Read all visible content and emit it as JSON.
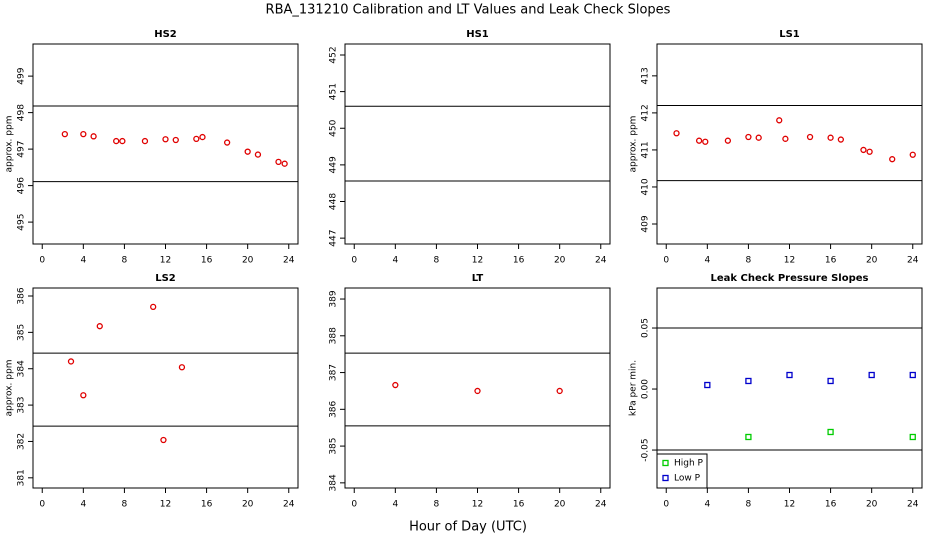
{
  "title": "RBA_131210  Calibration and LT Values and Leak Check Slopes",
  "xlabel": "Hour of Day (UTC)",
  "chart_data": [
    {
      "type": "scatter",
      "title": "HS2",
      "ylabel": "approx. ppm",
      "marker": "circle",
      "color": "#e00000",
      "x": [
        2.2,
        4,
        5,
        7.2,
        7.8,
        10,
        12,
        13,
        15,
        15.6,
        18,
        20,
        21,
        23,
        23.6
      ],
      "values": [
        497.41,
        497.41,
        497.35,
        497.22,
        497.22,
        497.22,
        497.27,
        497.25,
        497.28,
        497.33,
        497.18,
        496.93,
        496.85,
        496.65,
        496.6
      ],
      "hlines": [
        498.18,
        496.11
      ],
      "xlim": [
        -0.9,
        24.9
      ],
      "xticks": [
        0,
        4,
        8,
        12,
        16,
        20,
        24
      ],
      "ylim": [
        494.4,
        499.88
      ],
      "yticks": [
        495,
        496,
        497,
        498,
        499
      ]
    },
    {
      "type": "scatter",
      "title": "HS1",
      "marker": "circle",
      "color": "#e00000",
      "x": [],
      "values": [],
      "hlines": [
        450.6,
        448.56
      ],
      "xlim": [
        -0.9,
        24.9
      ],
      "xticks": [
        0,
        4,
        8,
        12,
        16,
        20,
        24
      ],
      "ylim": [
        446.84,
        452.3
      ],
      "yticks": [
        447,
        448,
        449,
        450,
        451,
        452
      ]
    },
    {
      "type": "scatter",
      "title": "LS1",
      "ylabel": "approx. ppm",
      "marker": "circle",
      "color": "#e00000",
      "x": [
        1,
        3.2,
        3.8,
        6,
        8,
        9,
        11,
        11.6,
        14,
        16,
        17,
        19.2,
        19.8,
        22,
        24
      ],
      "values": [
        411.45,
        411.25,
        411.22,
        411.25,
        411.35,
        411.33,
        411.8,
        411.3,
        411.35,
        411.33,
        411.28,
        411.0,
        410.95,
        410.75,
        410.87
      ],
      "hlines": [
        412.2,
        410.17
      ],
      "xlim": [
        -0.9,
        24.9
      ],
      "xticks": [
        0,
        4,
        8,
        12,
        16,
        20,
        24
      ],
      "ylim": [
        408.46,
        413.86
      ],
      "yticks": [
        409,
        410,
        411,
        412,
        413
      ]
    },
    {
      "type": "scatter",
      "title": "LS2",
      "ylabel": "approx. ppm",
      "marker": "circle",
      "color": "#e00000",
      "x": [
        2.8,
        4,
        5.6,
        10.8,
        11.8,
        13.6
      ],
      "values": [
        384.2,
        383.27,
        385.17,
        385.7,
        382.04,
        384.04
      ],
      "hlines": [
        384.43,
        382.42
      ],
      "xlim": [
        -0.9,
        24.9
      ],
      "xticks": [
        0,
        4,
        8,
        12,
        16,
        20,
        24
      ],
      "ylim": [
        380.72,
        386.22
      ],
      "yticks": [
        381,
        382,
        383,
        384,
        385,
        386
      ]
    },
    {
      "type": "scatter",
      "title": "LT",
      "marker": "circle",
      "color": "#e00000",
      "x": [
        4,
        12,
        20
      ],
      "values": [
        386.66,
        386.5,
        386.5
      ],
      "hlines": [
        387.53,
        385.55
      ],
      "xlim": [
        -0.9,
        24.9
      ],
      "xticks": [
        0,
        4,
        8,
        12,
        16,
        20,
        24
      ],
      "ylim": [
        383.86,
        389.3
      ],
      "yticks": [
        384,
        385,
        386,
        387,
        388,
        389
      ]
    },
    {
      "type": "scatter",
      "title": "Leak Check Pressure Slopes",
      "ylabel": "kPa per min.",
      "marker": "square",
      "legend": "bottom-left",
      "series": [
        {
          "name": "High P",
          "color": "#00cc00",
          "x": [
            8,
            16,
            24
          ],
          "values": [
            -0.0393,
            -0.0352,
            -0.0393
          ]
        },
        {
          "name": "Low P",
          "color": "#0000cc",
          "x": [
            4,
            8,
            12,
            16,
            20,
            24
          ],
          "values": [
            0.0033,
            0.0066,
            0.0115,
            0.0066,
            0.0115,
            0.0115
          ]
        }
      ],
      "hlines": [
        0.05,
        -0.05
      ],
      "xlim": [
        -0.9,
        24.9
      ],
      "xticks": [
        0,
        4,
        8,
        12,
        16,
        20,
        24
      ],
      "ylim": [
        -0.0811,
        0.0828
      ],
      "yticks": [
        -0.05,
        {
          "value": 0,
          "label": "0.00"
        },
        0.05
      ]
    }
  ]
}
